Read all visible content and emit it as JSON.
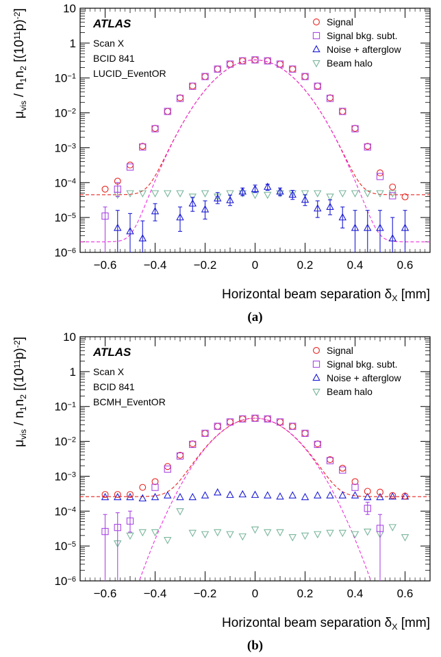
{
  "chart_data": [
    {
      "type": "scatter",
      "panel_label": "(a)",
      "experiment": "ATLAS",
      "annotations": [
        "Scan X",
        "BCID 841",
        "LUCID_EventOR"
      ],
      "xlabel": "Horizontal beam separation δ_X [mm]",
      "ylabel": "μ_vis / n1n2 [(10^11 p)^-2]",
      "xlim": [
        -0.7,
        0.7
      ],
      "ylim": [
        1e-06,
        10
      ],
      "ylog": true,
      "xticks": [
        "−0.6",
        "−0.4",
        "−0.2",
        "0",
        "0.2",
        "0.4",
        "0.6"
      ],
      "yticks": [
        "10",
        "1",
        "10⁻¹",
        "10⁻²",
        "10⁻³",
        "10⁻⁴",
        "10⁻⁵",
        "10⁻⁶"
      ],
      "legend_position": "top-right",
      "colors": {
        "signal": "#e8201c",
        "signal_bkg_subt": "#a846e4",
        "noise_afterglow": "#1a1ad6",
        "beam_halo": "#79b59b",
        "fit_signal": "#e8201c",
        "fit_subt": "#ee2ee0"
      },
      "series": [
        {
          "name": "Signal",
          "marker": "circle",
          "x": [
            -0.6,
            -0.55,
            -0.5,
            -0.45,
            -0.4,
            -0.35,
            -0.3,
            -0.25,
            -0.2,
            -0.15,
            -0.1,
            -0.05,
            0,
            0.05,
            0.1,
            0.15,
            0.2,
            0.25,
            0.3,
            0.35,
            0.4,
            0.45,
            0.5,
            0.55,
            0.6
          ],
          "y": [
            6.5e-05,
            0.00011,
            0.00032,
            0.0011,
            0.0036,
            0.011,
            0.027,
            0.059,
            0.11,
            0.18,
            0.25,
            0.31,
            0.33,
            0.31,
            0.25,
            0.18,
            0.11,
            0.059,
            0.027,
            0.011,
            0.0036,
            0.0011,
            0.00019,
            7.5e-05,
            3.9e-05
          ]
        },
        {
          "name": "Signal bkg. subt.",
          "marker": "square",
          "x": [
            -0.6,
            -0.55,
            -0.5,
            -0.45,
            -0.4,
            -0.35,
            -0.3,
            -0.25,
            -0.2,
            -0.15,
            -0.1,
            -0.05,
            0,
            0.05,
            0.1,
            0.15,
            0.2,
            0.25,
            0.3,
            0.35,
            0.4,
            0.45,
            0.5,
            0.55,
            0.6
          ],
          "y": [
            1.1e-05,
            6.5e-05,
            0.00028,
            0.00105,
            0.0035,
            0.011,
            0.026,
            0.058,
            0.11,
            0.18,
            0.25,
            0.31,
            0.33,
            0.31,
            0.25,
            0.18,
            0.11,
            0.058,
            0.026,
            0.011,
            0.0035,
            0.00105,
            0.00015,
            4.2e-05,
            null
          ],
          "err_low": [
            1e-06,
            4e-05,
            null,
            null,
            null,
            null,
            null,
            null,
            null,
            null,
            null,
            null,
            null,
            null,
            null,
            null,
            null,
            null,
            null,
            null,
            null,
            null,
            null,
            null,
            null
          ],
          "err_high": [
            2e-05,
            0.0001,
            null,
            null,
            null,
            null,
            null,
            null,
            null,
            null,
            null,
            null,
            null,
            null,
            null,
            null,
            null,
            null,
            null,
            null,
            null,
            null,
            null,
            null,
            null
          ]
        },
        {
          "name": "Noise + afterglow",
          "marker": "triangle-up",
          "x": [
            -0.55,
            -0.5,
            -0.45,
            -0.4,
            -0.3,
            -0.25,
            -0.2,
            -0.15,
            -0.1,
            -0.05,
            0,
            0.05,
            0.1,
            0.15,
            0.2,
            0.25,
            0.3,
            0.35,
            0.4,
            0.45,
            0.5,
            0.55,
            0.6
          ],
          "y": [
            5e-06,
            4e-06,
            2.5e-06,
            1.5e-05,
            1e-05,
            2.5e-05,
            1.7e-05,
            3.5e-05,
            3.1e-05,
            5.5e-05,
            6.5e-05,
            7.5e-05,
            5.5e-05,
            4.5e-05,
            3.2e-05,
            1.8e-05,
            2e-05,
            1e-05,
            5e-06,
            5e-06,
            5e-06,
            2.5e-06,
            5e-06
          ],
          "err_low": [
            1e-06,
            1e-06,
            1e-06,
            8e-06,
            4e-06,
            1.5e-05,
            9e-06,
            2.5e-05,
            2.2e-05,
            4.2e-05,
            5.2e-05,
            6e-05,
            4.2e-05,
            3.3e-05,
            2.2e-05,
            1e-05,
            1.2e-05,
            5e-06,
            1e-06,
            1e-06,
            1e-06,
            1e-06,
            1e-06
          ],
          "err_high": [
            1.6e-05,
            1.3e-05,
            8e-06,
            2.5e-05,
            2e-05,
            3.8e-05,
            3e-05,
            5.2e-05,
            4.4e-05,
            7e-05,
            8.5e-05,
            9e-05,
            7e-05,
            6e-05,
            4.5e-05,
            3e-05,
            3.2e-05,
            2e-05,
            1.6e-05,
            1.6e-05,
            1.6e-05,
            1e-05,
            1.6e-05
          ]
        },
        {
          "name": "Beam halo",
          "marker": "triangle-down",
          "x": [
            -0.55,
            -0.5,
            -0.45,
            -0.4,
            -0.35,
            -0.3,
            -0.25,
            -0.2,
            -0.15,
            -0.1,
            -0.05,
            0,
            0.05,
            0.1,
            0.15,
            0.2,
            0.25,
            0.3,
            0.35,
            0.4,
            0.45,
            0.5,
            0.55
          ],
          "y": [
            4.5e-05,
            5e-05,
            5e-05,
            5e-05,
            5e-05,
            5e-05,
            4e-05,
            5e-05,
            4e-05,
            5e-05,
            5e-05,
            4.5e-05,
            4.5e-05,
            5e-05,
            5e-05,
            5e-05,
            5e-05,
            4e-05,
            5e-05,
            5e-05,
            5e-05,
            5e-05,
            5e-05
          ]
        }
      ],
      "fits": [
        {
          "series": "Signal",
          "style": "dashed",
          "peak": 0.33,
          "sigma": 0.1,
          "constant": 4.5e-05
        },
        {
          "series": "Signal bkg. subt.",
          "style": "dashed",
          "peak": 0.33,
          "sigma": 0.1,
          "constant": 2e-06
        }
      ]
    },
    {
      "type": "scatter",
      "panel_label": "(b)",
      "experiment": "ATLAS",
      "annotations": [
        "Scan X",
        "BCID 841",
        "BCMH_EventOR"
      ],
      "xlabel": "Horizontal beam separation δ_X [mm]",
      "ylabel": "μ_vis / n1n2 [(10^11 p)^-2]",
      "xlim": [
        -0.7,
        0.7
      ],
      "ylim": [
        1e-06,
        10
      ],
      "ylog": true,
      "xticks": [
        "−0.6",
        "−0.4",
        "−0.2",
        "0",
        "0.2",
        "0.4",
        "0.6"
      ],
      "yticks": [
        "10",
        "1",
        "10⁻¹",
        "10⁻²",
        "10⁻³",
        "10⁻⁴",
        "10⁻⁵",
        "10⁻⁶"
      ],
      "legend_position": "top-right",
      "colors": {
        "signal": "#e8201c",
        "signal_bkg_subt": "#a846e4",
        "noise_afterglow": "#1a1ad6",
        "beam_halo": "#79b59b",
        "fit_signal": "#e8201c",
        "fit_subt": "#ee2ee0"
      },
      "series": [
        {
          "name": "Signal",
          "marker": "circle",
          "x": [
            -0.6,
            -0.55,
            -0.5,
            -0.45,
            -0.4,
            -0.35,
            -0.3,
            -0.25,
            -0.2,
            -0.15,
            -0.1,
            -0.05,
            0,
            0.05,
            0.1,
            0.15,
            0.2,
            0.25,
            0.3,
            0.35,
            0.4,
            0.45,
            0.5,
            0.55,
            0.6
          ],
          "y": [
            0.0003,
            0.0003,
            0.0003,
            0.00048,
            0.0007,
            0.0019,
            0.004,
            0.0085,
            0.017,
            0.027,
            0.036,
            0.044,
            0.046,
            0.044,
            0.036,
            0.027,
            0.017,
            0.0085,
            0.003,
            0.0017,
            0.0007,
            0.00037,
            0.00035,
            0.00028,
            0.00027
          ]
        },
        {
          "name": "Signal bkg. subt.",
          "marker": "square",
          "x": [
            -0.6,
            -0.55,
            -0.5,
            -0.4,
            -0.35,
            -0.3,
            -0.25,
            -0.2,
            -0.15,
            -0.1,
            -0.05,
            0,
            0.05,
            0.1,
            0.15,
            0.2,
            0.25,
            0.3,
            0.35,
            0.4,
            0.45,
            0.5
          ],
          "y": [
            2.6e-05,
            3.4e-05,
            5.2e-05,
            0.00048,
            0.0016,
            0.0038,
            0.0082,
            0.017,
            0.027,
            0.036,
            0.044,
            0.046,
            0.044,
            0.036,
            0.027,
            0.017,
            0.0082,
            0.0028,
            0.0015,
            0.00048,
            0.00012,
            3.2e-05
          ],
          "err_low": [
            1e-06,
            1e-06,
            2.5e-05,
            null,
            null,
            null,
            null,
            null,
            null,
            null,
            null,
            null,
            null,
            null,
            null,
            null,
            null,
            null,
            null,
            null,
            8e-05,
            1e-06
          ],
          "err_high": [
            8e-05,
            9e-05,
            0.0001,
            null,
            null,
            null,
            null,
            null,
            null,
            null,
            null,
            null,
            null,
            null,
            null,
            null,
            null,
            null,
            null,
            null,
            0.00018,
            8e-05
          ]
        },
        {
          "name": "Noise + afterglow",
          "marker": "triangle-up",
          "x": [
            -0.6,
            -0.55,
            -0.5,
            -0.45,
            -0.4,
            -0.35,
            -0.3,
            -0.25,
            -0.2,
            -0.15,
            -0.1,
            -0.05,
            0,
            0.05,
            0.1,
            0.15,
            0.2,
            0.25,
            0.3,
            0.35,
            0.4,
            0.45,
            0.5,
            0.55,
            0.6
          ],
          "y": [
            0.00025,
            0.00025,
            0.00025,
            0.00023,
            0.00025,
            0.00028,
            0.00025,
            0.00025,
            0.00028,
            0.00034,
            0.00029,
            0.0003,
            0.00029,
            0.00028,
            0.00026,
            0.00028,
            0.00025,
            0.00028,
            0.00028,
            0.00028,
            0.00028,
            0.00025,
            0.00025,
            0.00026,
            0.00026
          ]
        },
        {
          "name": "Beam halo",
          "marker": "triangle-down",
          "x": [
            -0.55,
            -0.5,
            -0.45,
            -0.4,
            -0.35,
            -0.3,
            -0.25,
            -0.2,
            -0.15,
            -0.1,
            -0.05,
            0,
            0.05,
            0.1,
            0.15,
            0.2,
            0.25,
            0.3,
            0.35,
            0.4,
            0.45,
            0.5,
            0.55,
            0.6
          ],
          "y": [
            1.2e-05,
            2e-05,
            2.5e-05,
            2.5e-05,
            1.5e-05,
            0.0001,
            2.4e-05,
            2.2e-05,
            2.5e-05,
            2.2e-05,
            1.9e-05,
            3e-05,
            2.5e-05,
            2.5e-05,
            1.8e-05,
            2e-05,
            2.2e-05,
            2.4e-05,
            2.4e-05,
            2.2e-05,
            2.6e-05,
            2.2e-05,
            3.5e-05,
            1.8e-05
          ]
        }
      ],
      "fits": [
        {
          "series": "Signal",
          "style": "dashed",
          "peak": 0.046,
          "sigma": 0.1,
          "constant": 0.00026
        },
        {
          "series": "Signal bkg. subt.",
          "style": "dashed",
          "peak": 0.046,
          "sigma": 0.1,
          "constant": 0
        }
      ]
    }
  ]
}
